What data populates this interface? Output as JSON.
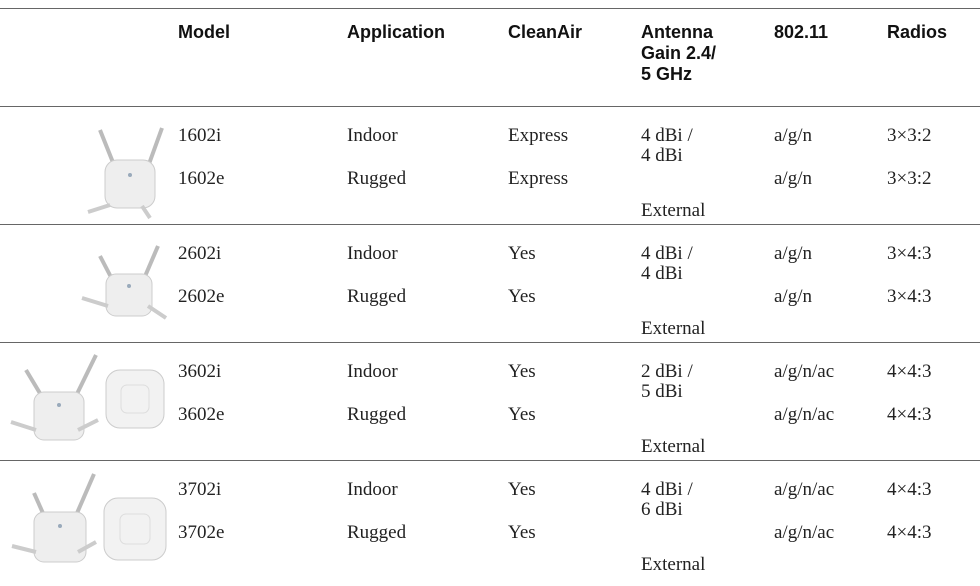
{
  "table": {
    "header": {
      "model": "Model",
      "application": "Application",
      "cleanair": "CleanAir",
      "antenna": [
        "Antenna",
        "Gain 2.4/",
        "5 GHz"
      ],
      "standard": "802.11",
      "radios": "Radios"
    },
    "groups": [
      {
        "rows": [
          [
            "1602i",
            "Indoor",
            "Express",
            "a/g/n",
            "3×3:2"
          ],
          [
            "1602e",
            "Rugged",
            "Express",
            "a/g/n",
            "3×3:2"
          ]
        ],
        "antenna": [
          "4 dBi /",
          "4 dBi",
          "External"
        ]
      },
      {
        "rows": [
          [
            "2602i",
            "Indoor",
            "Yes",
            "a/g/n",
            "3×4:3"
          ],
          [
            "2602e",
            "Rugged",
            "Yes",
            "a/g/n",
            "3×4:3"
          ]
        ],
        "antenna": [
          "4 dBi /",
          "4 dBi",
          "External"
        ]
      },
      {
        "rows": [
          [
            "3602i",
            "Indoor",
            "Yes",
            "a/g/n/ac",
            "4×4:3"
          ],
          [
            "3602e",
            "Rugged",
            "Yes",
            "a/g/n/ac",
            "4×4:3"
          ]
        ],
        "antenna": [
          "2 dBi /",
          "5 dBi",
          "External"
        ]
      },
      {
        "rows": [
          [
            "3702i",
            "Indoor",
            "Yes",
            "a/g/n/ac",
            "4×4:3"
          ],
          [
            "3702e",
            "Rugged",
            "Yes",
            "a/g/n/ac",
            "4×4:3"
          ]
        ],
        "antenna": [
          "4 dBi /",
          "6 dBi",
          "External"
        ]
      }
    ]
  }
}
